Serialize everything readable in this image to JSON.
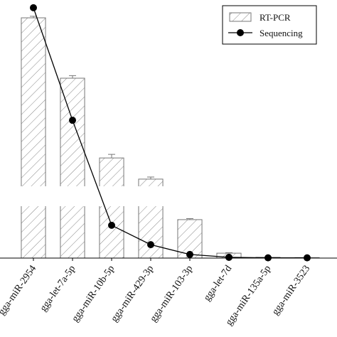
{
  "chart_data": {
    "type": "bar_line",
    "categories": [
      "gga-miR-2954",
      "gga-let-7a-5p",
      "gga-miR-10b-5p",
      "gga-miR-429-3p",
      "gga-miR-103-3p",
      "gga-let-7d",
      "gga-miR-135a-5p",
      "gga-miR-3523"
    ],
    "series": [
      {
        "name": "RT-PCR",
        "type": "bar",
        "color": "#777777",
        "values": [
          93.1,
          69.7,
          38.8,
          30.6,
          14.9,
          1.9,
          0.3,
          0.2
        ],
        "errors": [
          0.6,
          1.0,
          1.4,
          0.8,
          0.4,
          0.2,
          0.1,
          0.1
        ]
      },
      {
        "name": "Sequencing",
        "type": "line",
        "color": "#000000",
        "values": [
          97.0,
          53.4,
          12.7,
          5.2,
          1.4,
          0.3,
          0.1,
          0.1
        ]
      }
    ],
    "ylim": [
      0,
      100
    ],
    "legend": "upper right"
  }
}
